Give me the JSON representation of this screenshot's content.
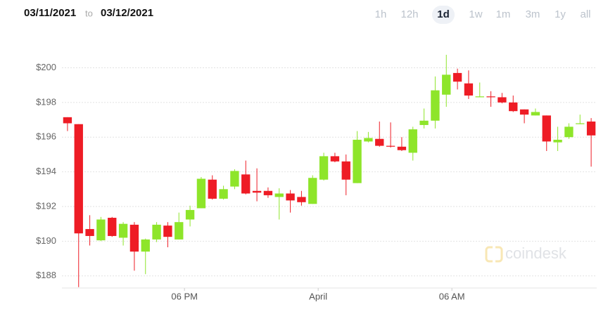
{
  "chart_data": {
    "type": "candlestick",
    "date_from": "03/11/2021",
    "date_separator": "to",
    "date_to": "03/12/2021",
    "ranges": [
      "1h",
      "12h",
      "1d",
      "1w",
      "1m",
      "3m",
      "1y",
      "all"
    ],
    "selected_range": 2,
    "watermark": "coindesk",
    "up_color": "#8ee52a",
    "down_color": "#ee1c25",
    "open": [
      197.15,
      196.75,
      190.7,
      190.05,
      191.35,
      190.2,
      190.95,
      189.4,
      190.1,
      190.9,
      190.1,
      191.25,
      191.9,
      193.55,
      192.45,
      193.15,
      193.85,
      192.9,
      192.9,
      192.55,
      192.75,
      192.55,
      192.15,
      193.55,
      194.9,
      194.6,
      193.35,
      195.75,
      195.9,
      195.5,
      195.45,
      195.1,
      196.7,
      196.95,
      198.45,
      199.7,
      199.1,
      198.3,
      198.35,
      198.3,
      198.0,
      197.6,
      197.25,
      197.25,
      195.7,
      196.0,
      196.75,
      196.9
    ],
    "high": [
      197.15,
      196.75,
      191.5,
      191.4,
      191.4,
      191.1,
      191.1,
      190.15,
      191.1,
      191.1,
      191.65,
      192.05,
      193.7,
      193.8,
      193.2,
      194.15,
      194.65,
      194.2,
      193.1,
      193.05,
      192.95,
      192.9,
      193.8,
      195.1,
      195.1,
      195.0,
      196.35,
      196.3,
      196.9,
      196.85,
      196.0,
      196.6,
      197.65,
      199.5,
      200.75,
      199.95,
      199.85,
      199.15,
      198.65,
      198.55,
      198.4,
      197.6,
      197.65,
      197.25,
      196.6,
      196.8,
      197.3,
      197.1
    ],
    "low": [
      196.35,
      187.35,
      189.75,
      190.0,
      190.25,
      189.75,
      188.3,
      188.1,
      189.95,
      189.65,
      190.1,
      190.85,
      191.9,
      192.4,
      192.4,
      193.0,
      192.7,
      192.3,
      192.5,
      191.25,
      191.65,
      192.05,
      192.15,
      193.5,
      194.55,
      192.65,
      193.35,
      195.7,
      195.45,
      195.4,
      195.2,
      194.65,
      196.5,
      196.5,
      197.75,
      198.75,
      198.2,
      198.3,
      197.75,
      197.95,
      197.45,
      196.8,
      197.25,
      195.2,
      195.2,
      195.9,
      196.75,
      194.3
    ],
    "close": [
      196.8,
      190.45,
      190.3,
      191.25,
      190.3,
      191.0,
      189.4,
      190.1,
      190.95,
      190.25,
      191.1,
      191.8,
      193.6,
      192.45,
      193.0,
      194.05,
      192.75,
      192.8,
      192.65,
      192.75,
      192.35,
      192.25,
      193.65,
      194.9,
      194.6,
      193.55,
      195.85,
      195.95,
      195.5,
      195.45,
      195.25,
      196.45,
      196.95,
      198.7,
      199.6,
      199.2,
      198.4,
      198.35,
      198.3,
      198.0,
      197.5,
      197.3,
      197.45,
      195.75,
      195.85,
      196.6,
      196.8,
      196.1
    ],
    "xlim": [
      -0.5,
      47.5
    ],
    "xticks": [
      {
        "value": 10.5,
        "label": "06 PM"
      },
      {
        "value": 22.5,
        "label": "April"
      },
      {
        "value": 34.5,
        "label": "06 AM"
      }
    ],
    "ylim": [
      187.3,
      201.6
    ],
    "yticks": [
      {
        "value": 188,
        "label": "$188"
      },
      {
        "value": 190,
        "label": "$190"
      },
      {
        "value": 192,
        "label": "$192"
      },
      {
        "value": 194,
        "label": "$194"
      },
      {
        "value": 196,
        "label": "$196"
      },
      {
        "value": 198,
        "label": "$198"
      },
      {
        "value": 200,
        "label": "$200"
      }
    ],
    "grid": true
  }
}
